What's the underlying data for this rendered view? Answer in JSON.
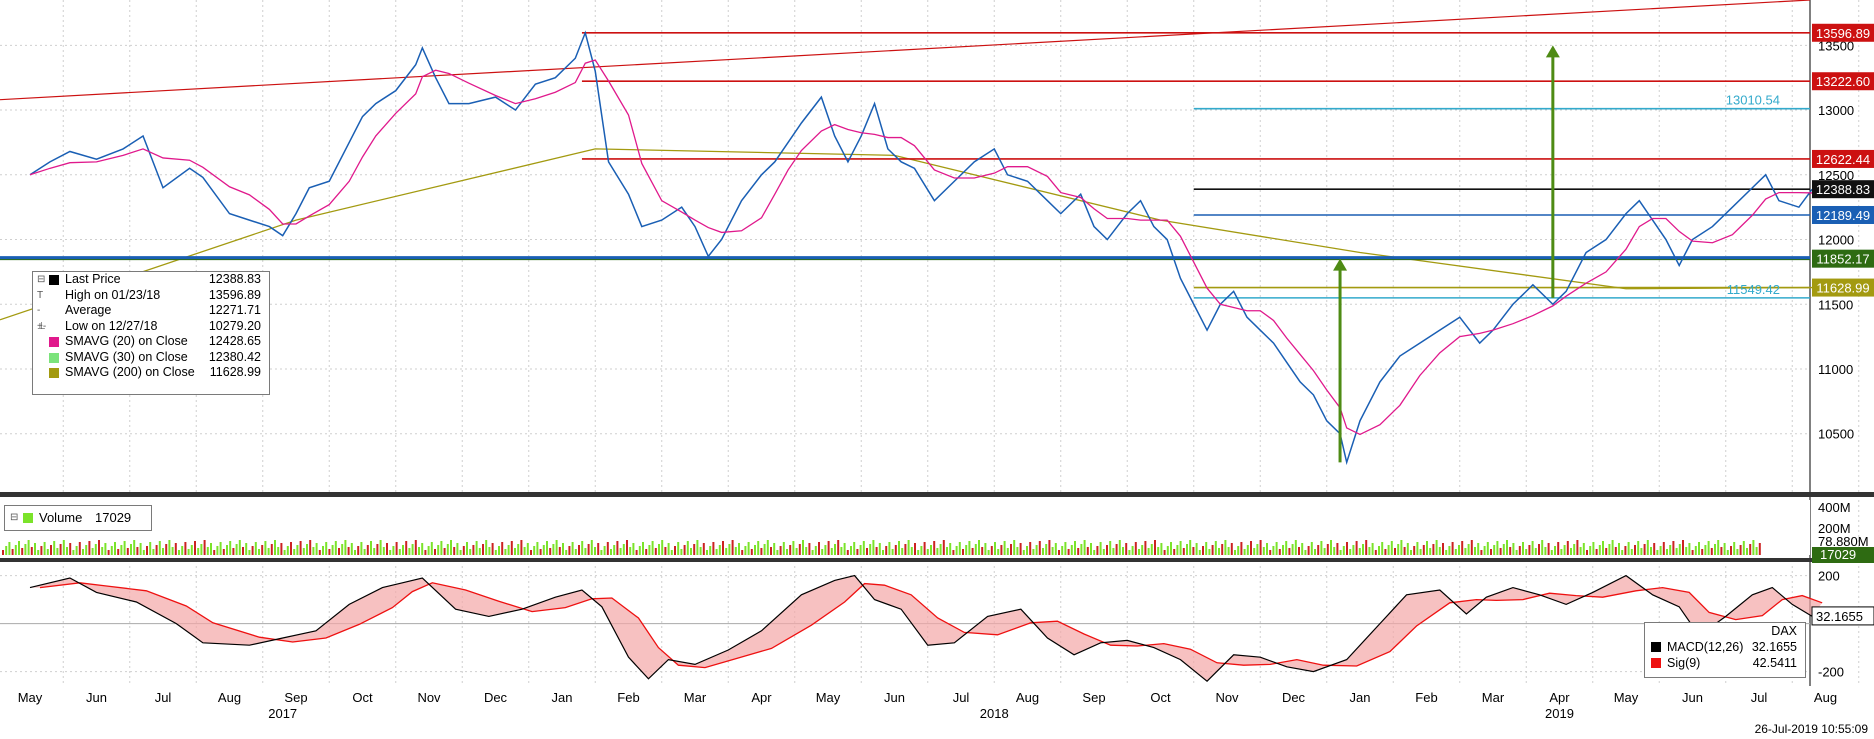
{
  "chart_data": [
    {
      "type": "line",
      "panel": "price",
      "series_name_symbol": "DAX",
      "x_months": [
        "May",
        "Jun",
        "Jul",
        "Aug",
        "Sep",
        "Oct",
        "Nov",
        "Dec",
        "Jan",
        "Feb",
        "Mar",
        "Apr",
        "May",
        "Jun",
        "Jul",
        "Aug",
        "Sep",
        "Oct",
        "Nov",
        "Dec",
        "Jan",
        "Feb",
        "Mar",
        "Apr",
        "May",
        "Jun",
        "Jul",
        "Aug"
      ],
      "x_years": [
        {
          "label": "2017",
          "month_index": 3.8
        },
        {
          "label": "2018",
          "month_index": 14.5
        },
        {
          "label": "2019",
          "month_index": 23.0
        }
      ],
      "ylim": [
        10050,
        13850
      ],
      "y_ticks": [
        10500,
        11000,
        11500,
        12000,
        12500,
        13000,
        13500
      ],
      "close_series": [
        [
          0,
          12500
        ],
        [
          0.3,
          12600
        ],
        [
          0.6,
          12680
        ],
        [
          1,
          12620
        ],
        [
          1.4,
          12700
        ],
        [
          1.7,
          12800
        ],
        [
          2,
          12400
        ],
        [
          2.4,
          12550
        ],
        [
          2.6,
          12480
        ],
        [
          3,
          12200
        ],
        [
          3.3,
          12150
        ],
        [
          3.6,
          12100
        ],
        [
          3.8,
          12030
        ],
        [
          4,
          12200
        ],
        [
          4.2,
          12400
        ],
        [
          4.5,
          12450
        ],
        [
          4.8,
          12750
        ],
        [
          5,
          12950
        ],
        [
          5.2,
          13050
        ],
        [
          5.5,
          13150
        ],
        [
          5.8,
          13350
        ],
        [
          5.9,
          13480
        ],
        [
          6.1,
          13250
        ],
        [
          6.3,
          13050
        ],
        [
          6.6,
          13050
        ],
        [
          7,
          13100
        ],
        [
          7.3,
          13000
        ],
        [
          7.6,
          13200
        ],
        [
          7.9,
          13250
        ],
        [
          8.2,
          13400
        ],
        [
          8.35,
          13596.89
        ],
        [
          8.5,
          13300
        ],
        [
          8.7,
          12600
        ],
        [
          9,
          12350
        ],
        [
          9.2,
          12100
        ],
        [
          9.5,
          12150
        ],
        [
          9.8,
          12250
        ],
        [
          10,
          12100
        ],
        [
          10.2,
          11870
        ],
        [
          10.4,
          12000
        ],
        [
          10.7,
          12300
        ],
        [
          11,
          12500
        ],
        [
          11.2,
          12600
        ],
        [
          11.4,
          12750
        ],
        [
          11.6,
          12900
        ],
        [
          11.9,
          13100
        ],
        [
          12.1,
          12800
        ],
        [
          12.3,
          12600
        ],
        [
          12.5,
          12800
        ],
        [
          12.7,
          13050
        ],
        [
          12.9,
          12700
        ],
        [
          13.1,
          12600
        ],
        [
          13.3,
          12550
        ],
        [
          13.6,
          12300
        ],
        [
          13.9,
          12450
        ],
        [
          14.2,
          12600
        ],
        [
          14.5,
          12700
        ],
        [
          14.7,
          12500
        ],
        [
          15,
          12450
        ],
        [
          15.3,
          12300
        ],
        [
          15.5,
          12200
        ],
        [
          15.8,
          12350
        ],
        [
          16,
          12100
        ],
        [
          16.2,
          12000
        ],
        [
          16.5,
          12200
        ],
        [
          16.7,
          12300
        ],
        [
          16.9,
          12100
        ],
        [
          17.1,
          12000
        ],
        [
          17.3,
          11700
        ],
        [
          17.5,
          11500
        ],
        [
          17.7,
          11300
        ],
        [
          17.9,
          11500
        ],
        [
          18.1,
          11600
        ],
        [
          18.3,
          11400
        ],
        [
          18.5,
          11300
        ],
        [
          18.7,
          11200
        ],
        [
          18.9,
          11050
        ],
        [
          19.1,
          10900
        ],
        [
          19.3,
          10800
        ],
        [
          19.5,
          10600
        ],
        [
          19.7,
          10500
        ],
        [
          19.8,
          10279.2
        ],
        [
          20.0,
          10600
        ],
        [
          20.3,
          10900
        ],
        [
          20.6,
          11100
        ],
        [
          20.9,
          11200
        ],
        [
          21.2,
          11300
        ],
        [
          21.5,
          11400
        ],
        [
          21.8,
          11200
        ],
        [
          22.0,
          11300
        ],
        [
          22.3,
          11500
        ],
        [
          22.6,
          11650
        ],
        [
          22.9,
          11500
        ],
        [
          23.1,
          11600
        ],
        [
          23.4,
          11900
        ],
        [
          23.7,
          12000
        ],
        [
          24.0,
          12200
        ],
        [
          24.2,
          12300
        ],
        [
          24.4,
          12150
        ],
        [
          24.6,
          12000
        ],
        [
          24.8,
          11800
        ],
        [
          25.0,
          12000
        ],
        [
          25.3,
          12100
        ],
        [
          25.6,
          12250
        ],
        [
          25.9,
          12400
        ],
        [
          26.1,
          12500
        ],
        [
          26.3,
          12300
        ],
        [
          26.6,
          12250
        ],
        [
          26.8,
          12388.83
        ]
      ],
      "horizontal_levels": [
        {
          "value": 13596.89,
          "label": "13596.89",
          "color": "#cc1111"
        },
        {
          "value": 13222.6,
          "label": "13222.60",
          "color": "#cc1111"
        },
        {
          "value": 13010.54,
          "label": "13010.54",
          "color": "#33aacc"
        },
        {
          "value": 12622.44,
          "label": "12622.44",
          "color": "#cc1111"
        },
        {
          "value": 12388.83,
          "label": "12388.83",
          "color": "#111111"
        },
        {
          "value": 12189.49,
          "label": "12189.49",
          "color": "#1a5fb4"
        },
        {
          "value": 11852.17,
          "label": "11852.17",
          "color": "#2e6b12"
        },
        {
          "value": 11628.99,
          "label": "11628.99",
          "color": "#a39a10"
        },
        {
          "value": 11549.42,
          "label": "11549.42",
          "color": "#33aacc"
        }
      ],
      "legend": {
        "entries": [
          {
            "label": "Last Price",
            "value": "",
            "color": "#000000",
            "symbol": "⊟"
          },
          {
            "label": "High on 01/23/18",
            "value": "13596.89",
            "color": "",
            "symbol": "T"
          },
          {
            "label": "Average",
            "value": "12271.71",
            "color": "",
            "symbol": "-+-"
          },
          {
            "label": "Low on 12/27/18",
            "value": "10279.20",
            "color": "",
            "symbol": "⊥"
          },
          {
            "label": "SMAVG (20)  on Close",
            "value": "12428.65",
            "color": "#e0198c",
            "symbol": ""
          },
          {
            "label": "SMAVG (30)  on Close",
            "value": "12380.42",
            "color": "#7be37b",
            "symbol": ""
          },
          {
            "label": "SMAVG (200)  on Close",
            "value": "11628.99",
            "color": "#a39a10",
            "symbol": ""
          }
        ],
        "last_price_value": "12388.83"
      }
    },
    {
      "type": "bar",
      "panel": "volume",
      "legend_label": "Volume",
      "legend_value": "17029",
      "y_ticks": [
        "400M",
        "200M"
      ],
      "y_faint_tick": "78.880M",
      "current_tag": "17029"
    },
    {
      "type": "line",
      "panel": "macd",
      "ylim": [
        -260,
        240
      ],
      "y_ticks": [
        200,
        -200
      ],
      "macd_series": [
        [
          0,
          150
        ],
        [
          0.6,
          190
        ],
        [
          1,
          130
        ],
        [
          1.6,
          90
        ],
        [
          2.2,
          0
        ],
        [
          2.6,
          -80
        ],
        [
          3.3,
          -90
        ],
        [
          3.8,
          -60
        ],
        [
          4.3,
          -30
        ],
        [
          4.8,
          80
        ],
        [
          5.3,
          150
        ],
        [
          5.6,
          170
        ],
        [
          5.9,
          190
        ],
        [
          6.4,
          60
        ],
        [
          6.9,
          30
        ],
        [
          7.4,
          60
        ],
        [
          7.9,
          110
        ],
        [
          8.3,
          140
        ],
        [
          8.6,
          70
        ],
        [
          9.0,
          -140
        ],
        [
          9.3,
          -230
        ],
        [
          9.6,
          -150
        ],
        [
          10.0,
          -170
        ],
        [
          10.5,
          -110
        ],
        [
          11.0,
          -30
        ],
        [
          11.6,
          120
        ],
        [
          12.1,
          180
        ],
        [
          12.4,
          200
        ],
        [
          12.7,
          100
        ],
        [
          13.1,
          60
        ],
        [
          13.5,
          -90
        ],
        [
          13.9,
          -80
        ],
        [
          14.4,
          30
        ],
        [
          14.9,
          60
        ],
        [
          15.3,
          -60
        ],
        [
          15.7,
          -130
        ],
        [
          16.1,
          -80
        ],
        [
          16.5,
          -70
        ],
        [
          16.9,
          -100
        ],
        [
          17.3,
          -150
        ],
        [
          17.7,
          -240
        ],
        [
          18.1,
          -130
        ],
        [
          18.5,
          -140
        ],
        [
          18.9,
          -180
        ],
        [
          19.3,
          -200
        ],
        [
          19.8,
          -150
        ],
        [
          20.3,
          0
        ],
        [
          20.7,
          120
        ],
        [
          21.2,
          140
        ],
        [
          21.6,
          40
        ],
        [
          21.9,
          110
        ],
        [
          22.3,
          150
        ],
        [
          22.7,
          120
        ],
        [
          23.1,
          80
        ],
        [
          23.5,
          130
        ],
        [
          24.0,
          200
        ],
        [
          24.4,
          120
        ],
        [
          24.8,
          70
        ],
        [
          25.1,
          -50
        ],
        [
          25.5,
          30
        ],
        [
          25.9,
          120
        ],
        [
          26.2,
          150
        ],
        [
          26.5,
          80
        ],
        [
          26.8,
          30
        ]
      ],
      "legend": {
        "title": "DAX",
        "entries": [
          {
            "label": "MACD(12,26)",
            "value": "32.1655",
            "color": "#000000"
          },
          {
            "label": "Sig(9)",
            "value": "42.5411",
            "color": "#ee1111"
          }
        ]
      },
      "current_tag": "32.1655"
    }
  ],
  "timestamp": "26-Jul-2019 10:55:09"
}
